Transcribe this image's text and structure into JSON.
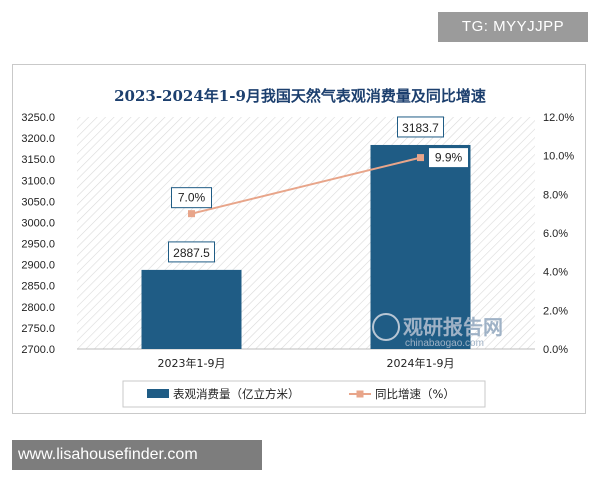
{
  "overlay": {
    "badge": "TG: MYYJJPP",
    "footer": "www.lisahousefinder.com"
  },
  "watermark": {
    "name_cn": "观研报告网",
    "name_en": "chinabaogao.com"
  },
  "colors": {
    "bar": "#1f5c85",
    "line": "#e8a58a",
    "title": "#1c3f6e"
  },
  "chart_data": {
    "type": "bar",
    "title": "2023-2024年1-9月我国天然气表观消费量及同比增速",
    "categories": [
      "2023年1-9月",
      "2024年1-9月"
    ],
    "series": [
      {
        "name": "表观消费量（亿立方米）",
        "type": "bar",
        "axis": "left",
        "values": [
          2887.5,
          3183.7
        ],
        "labels": [
          "2887.5",
          "3183.7"
        ]
      },
      {
        "name": "同比增速（%）",
        "type": "line",
        "axis": "right",
        "values": [
          7.0,
          9.9
        ],
        "labels": [
          "7.0%",
          "9.9%"
        ]
      }
    ],
    "y_left": {
      "min": 2700,
      "max": 3250,
      "ticks": [
        "2700.0",
        "2750.0",
        "2800.0",
        "2850.0",
        "2900.0",
        "2950.0",
        "3000.0",
        "3050.0",
        "3100.0",
        "3150.0",
        "3200.0",
        "3250.0"
      ]
    },
    "y_right": {
      "min": 0,
      "max": 12,
      "ticks": [
        "0.0%",
        "2.0%",
        "4.0%",
        "6.0%",
        "8.0%",
        "10.0%",
        "12.0%"
      ]
    },
    "legend": "bottom"
  }
}
